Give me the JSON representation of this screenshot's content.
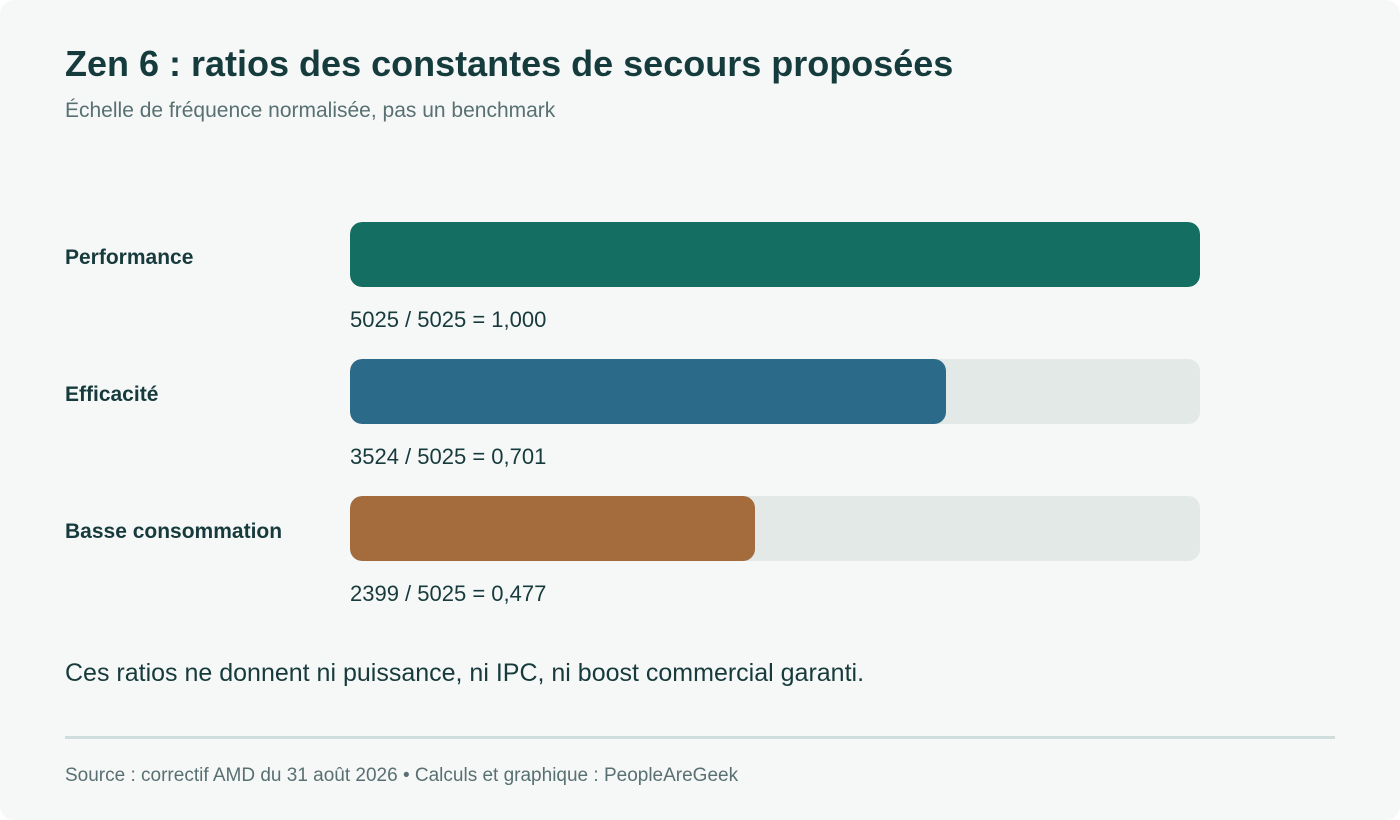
{
  "header": {
    "title": "Zen 6 : ratios des constantes de secours proposées",
    "subtitle": "Échelle de fréquence normalisée, pas un benchmark"
  },
  "chart_data": {
    "type": "bar",
    "orientation": "horizontal",
    "title": "Zen 6 : ratios des constantes de secours proposées",
    "subtitle": "Échelle de fréquence normalisée, pas un benchmark",
    "xlim": [
      0,
      1
    ],
    "grid": false,
    "legend": "none",
    "categories": [
      "Performance",
      "Efficacité",
      "Basse consommation"
    ],
    "values": [
      1.0,
      0.701,
      0.477
    ],
    "value_labels": [
      "5025 / 5025 = 1,000",
      "3524 / 5025 = 0,701",
      "2399 / 5025 = 0,477"
    ],
    "colors": [
      "#156e62",
      "#2c6a89",
      "#a46c3c"
    ],
    "track_color": "#e3e9e7"
  },
  "footer": {
    "note": "Ces ratios ne donnent ni puissance, ni IPC, ni boost commercial garanti.",
    "source": "Source : correctif AMD du 31 août 2026 • Calculs et graphique : PeopleAreGeek"
  }
}
